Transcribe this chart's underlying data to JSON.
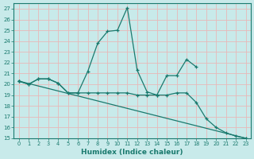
{
  "xlabel": "Humidex (Indice chaleur)",
  "xlim": [
    -0.5,
    23.5
  ],
  "ylim": [
    15,
    27.5
  ],
  "yticks": [
    15,
    16,
    17,
    18,
    19,
    20,
    21,
    22,
    23,
    24,
    25,
    26,
    27
  ],
  "xticks": [
    0,
    1,
    2,
    3,
    4,
    5,
    6,
    7,
    8,
    9,
    10,
    11,
    12,
    13,
    14,
    15,
    16,
    17,
    18,
    19,
    20,
    21,
    22,
    23
  ],
  "bg_color": "#c8eaea",
  "grid_color": "#e8b8b8",
  "line_color": "#1a7a6e",
  "line1_x": [
    0,
    1,
    2,
    3,
    4,
    5,
    6,
    7,
    8,
    9,
    10,
    11,
    12,
    13,
    14,
    15,
    16,
    17,
    18
  ],
  "line1_y": [
    20.3,
    20.0,
    20.5,
    20.5,
    20.1,
    19.2,
    19.2,
    21.2,
    23.8,
    24.9,
    25.0,
    27.1,
    21.3,
    19.3,
    19.0,
    20.8,
    20.8,
    22.3,
    21.6
  ],
  "line2_x": [
    0,
    1,
    2,
    3,
    4,
    5,
    6,
    7,
    8,
    9,
    10,
    11,
    12,
    13,
    14,
    15,
    16,
    17,
    18,
    19,
    20,
    21,
    22,
    23
  ],
  "line2_y": [
    20.3,
    20.0,
    20.5,
    20.5,
    20.1,
    19.2,
    19.2,
    19.2,
    19.2,
    19.2,
    19.2,
    19.2,
    19.0,
    19.0,
    19.0,
    19.0,
    19.2,
    19.2,
    18.3,
    16.8,
    16.0,
    15.5,
    15.2,
    15.0
  ],
  "line3_x": [
    0,
    23
  ],
  "line3_y": [
    20.3,
    15.0
  ],
  "marker": "+"
}
